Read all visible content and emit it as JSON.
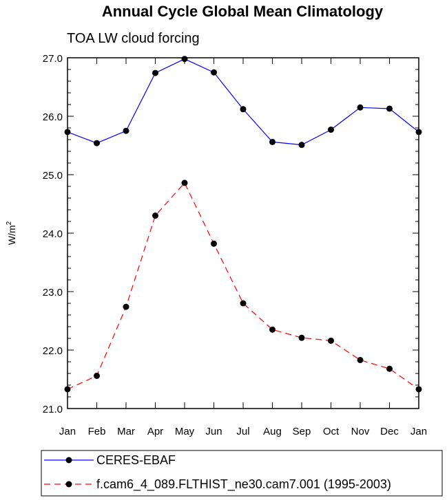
{
  "chart_data": {
    "type": "line",
    "title": "Annual Cycle Global Mean Climatology",
    "subtitle": "TOA LW cloud forcing",
    "ylabel": "W/m",
    "ylabel_sup": "2",
    "xlabel": "",
    "categories": [
      "Jan",
      "Feb",
      "Mar",
      "Apr",
      "May",
      "Jun",
      "Jul",
      "Aug",
      "Sep",
      "Oct",
      "Nov",
      "Dec",
      "Jan"
    ],
    "ylim": [
      21.0,
      27.0
    ],
    "yticks": [
      "21.0",
      "22.0",
      "23.0",
      "24.0",
      "25.0",
      "26.0",
      "27.0"
    ],
    "grid": false,
    "legend_position": "bottom",
    "series": [
      {
        "name": "CERES-EBAF",
        "color": "#0000ff",
        "dash": "solid",
        "marker": "filled-circle",
        "values": [
          25.73,
          25.54,
          25.75,
          26.74,
          26.98,
          26.75,
          26.12,
          25.56,
          25.51,
          25.77,
          26.15,
          26.13,
          25.73
        ]
      },
      {
        "name": "f.cam6_4_089.FLTHIST_ne30.cam7.001 (1995-2003)",
        "color": "#ff0000",
        "dash": "dashed",
        "marker": "filled-circle",
        "values": [
          21.33,
          21.56,
          22.74,
          24.3,
          24.86,
          23.82,
          22.8,
          22.35,
          22.21,
          22.16,
          21.83,
          21.68,
          21.33
        ]
      }
    ]
  }
}
